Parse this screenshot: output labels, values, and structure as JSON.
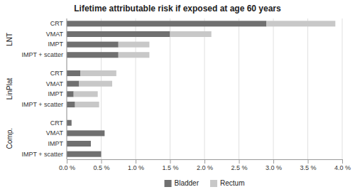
{
  "chart_data": {
    "type": "bar",
    "orientation": "horizontal",
    "stacked": true,
    "title": "Lifetime attributable risk if exposed at age 60 years",
    "groups": [
      {
        "label": "LNT",
        "categories": [
          "CRT",
          "VMAT",
          "IMPT",
          "IMPT + scatter"
        ]
      },
      {
        "label": "LinPlat",
        "categories": [
          "CRT",
          "VMAT",
          "IMPT",
          "IMPT + scatter"
        ]
      },
      {
        "label": "Comp.",
        "categories": [
          "CRT",
          "VMAT",
          "IMPT",
          "IMPT + scatter"
        ]
      }
    ],
    "series": [
      {
        "name": "Bladder",
        "color": "#707070",
        "values": [
          2.9,
          1.5,
          0.75,
          0.75,
          0.2,
          0.18,
          0.1,
          0.12,
          0.07,
          0.55,
          0.35,
          0.5
        ]
      },
      {
        "name": "Rectum",
        "color": "#c8c8c8",
        "values": [
          1.0,
          0.6,
          0.45,
          0.45,
          0.52,
          0.48,
          0.35,
          0.35,
          0.0,
          0.0,
          0.0,
          0.0
        ]
      }
    ],
    "xlim": [
      0.0,
      4.0
    ],
    "xticks": [
      {
        "value": 0.0,
        "label": "0.0 %"
      },
      {
        "value": 0.5,
        "label": "0.5 %"
      },
      {
        "value": 1.0,
        "label": "1.0 %"
      },
      {
        "value": 1.5,
        "label": "1.5 %"
      },
      {
        "value": 2.0,
        "label": "2.0 %"
      },
      {
        "value": 2.5,
        "label": "2.5 %"
      },
      {
        "value": 3.0,
        "label": "3.0 %"
      },
      {
        "value": 3.5,
        "label": "3.5 %"
      },
      {
        "value": 4.0,
        "label": "4.0 %"
      }
    ],
    "grid": true,
    "legend": "bottom"
  }
}
